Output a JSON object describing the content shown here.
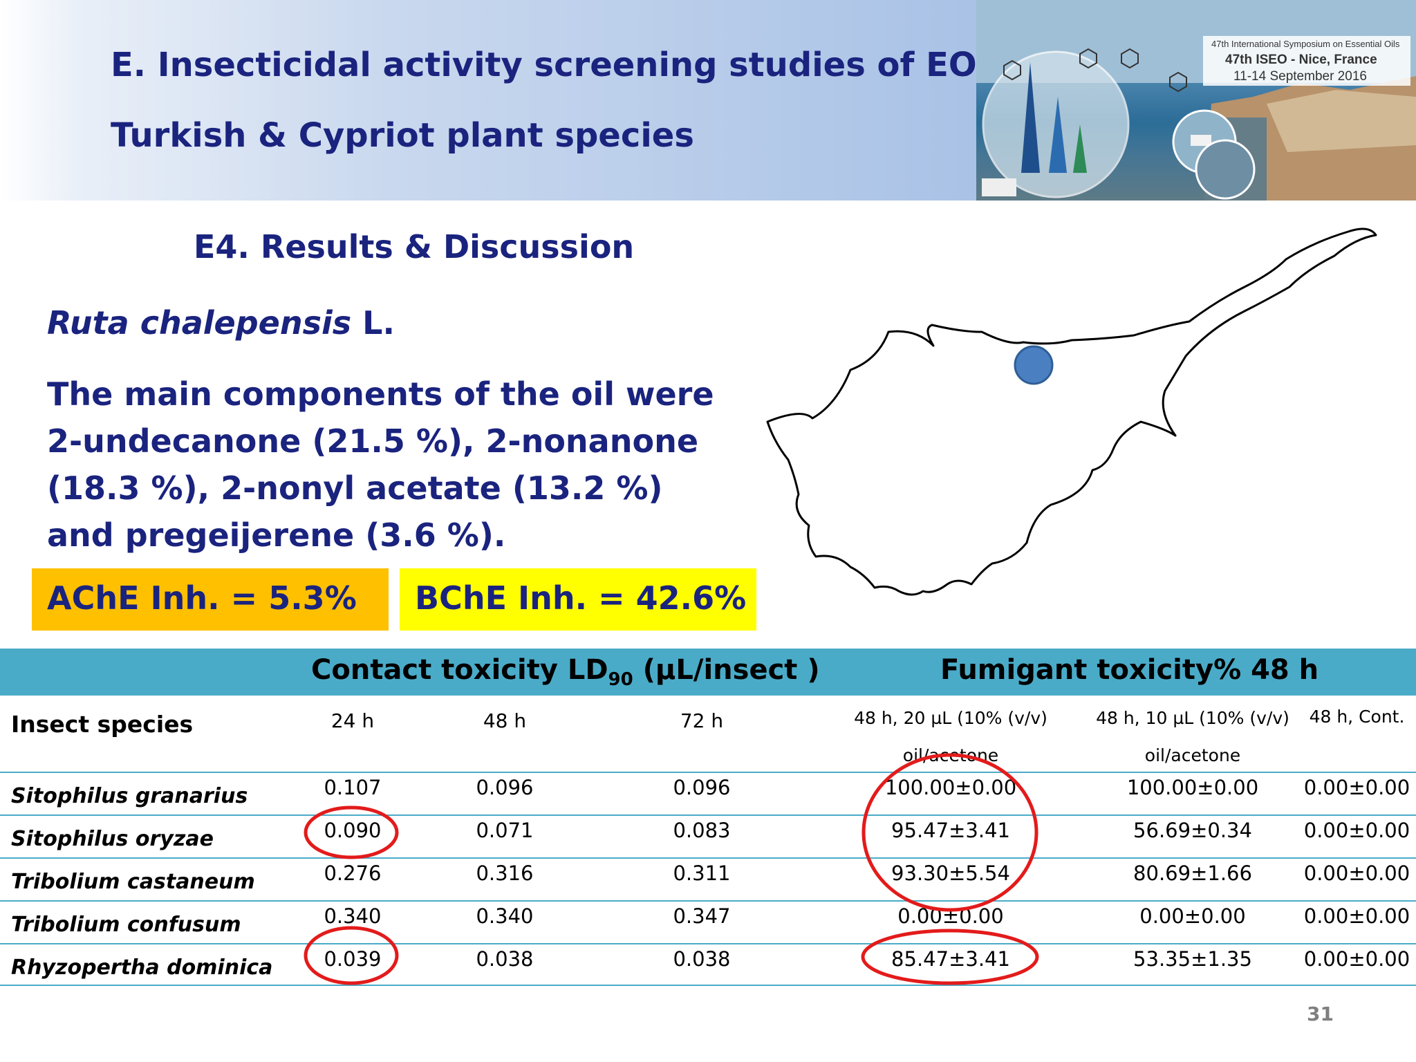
{
  "header": {
    "title_line1": "E. Insecticidal activity screening studies of EO from",
    "title_line2": "Turkish & Cypriot plant species"
  },
  "banner": {
    "line1": "47th International Symposium on Essential Oils",
    "line2": "47th ISEO - Nice, France",
    "line3": "11-14 September 2016"
  },
  "section": {
    "subtitle": "E4. Results & Discussion"
  },
  "species": {
    "name": "Ruta chalepensis",
    "author": "L."
  },
  "description": "The main components of the oil were 2-undecanone (21.5 %), 2-nonanone (18.3 %), 2-nonyl acetate (13.2 %) and pregeijerene (3.6 %).",
  "ache": "AChE Inh. = 5.3%",
  "bche": "BChE Inh. = 42.6%",
  "table": {
    "contact_title_pre": "Contact toxicity LD",
    "contact_title_sub": "90",
    "contact_title_post": " (µL/insect )",
    "fumigant_title": "Fumigant toxicity% 48 h",
    "col_insect": "Insect species",
    "col_24": "24 h",
    "col_48": "48 h",
    "col_72": "72 h",
    "col_f20_a": "48 h,  20 µL (10% (v/v)",
    "col_f20_b": "oil/acetone",
    "col_f10_a": "48 h, 10 µL (10% (v/v)",
    "col_f10_b": "oil/acetone",
    "col_cont": "48 h, Cont.",
    "rows": [
      {
        "species": "Sitophilus granarius",
        "h24": "0.107",
        "h48": "0.096",
        "h72": "0.096",
        "f20": "100.00±0.00",
        "f10": "100.00±0.00",
        "cont": "0.00±0.00"
      },
      {
        "species": "Sitophilus oryzae",
        "h24": "0.090",
        "h48": "0.071",
        "h72": "0.083",
        "f20": "95.47±3.41",
        "f10": "56.69±0.34",
        "cont": "0.00±0.00"
      },
      {
        "species": "Tribolium castaneum",
        "h24": "0.276",
        "h48": "0.316",
        "h72": "0.311",
        "f20": "93.30±5.54",
        "f10": "80.69±1.66",
        "cont": "0.00±0.00"
      },
      {
        "species": "Tribolium confusum",
        "h24": "0.340",
        "h48": "0.340",
        "h72": "0.347",
        "f20": "0.00±0.00",
        "f10": "0.00±0.00",
        "cont": "0.00±0.00"
      },
      {
        "species": "Rhyzopertha dominica",
        "h24": "0.039",
        "h48": "0.038",
        "h72": "0.038",
        "f20": "85.47±3.41",
        "f10": "53.35±1.35",
        "cont": "0.00±0.00"
      }
    ]
  },
  "page_number": "31",
  "colors": {
    "title": "#1a237e",
    "ache_bg": "#ffc000",
    "bche_bg": "#ffff00",
    "table_accent": "#4aabc8",
    "highlight": "#e31b1b",
    "map_dot": "#4a7fc1"
  }
}
